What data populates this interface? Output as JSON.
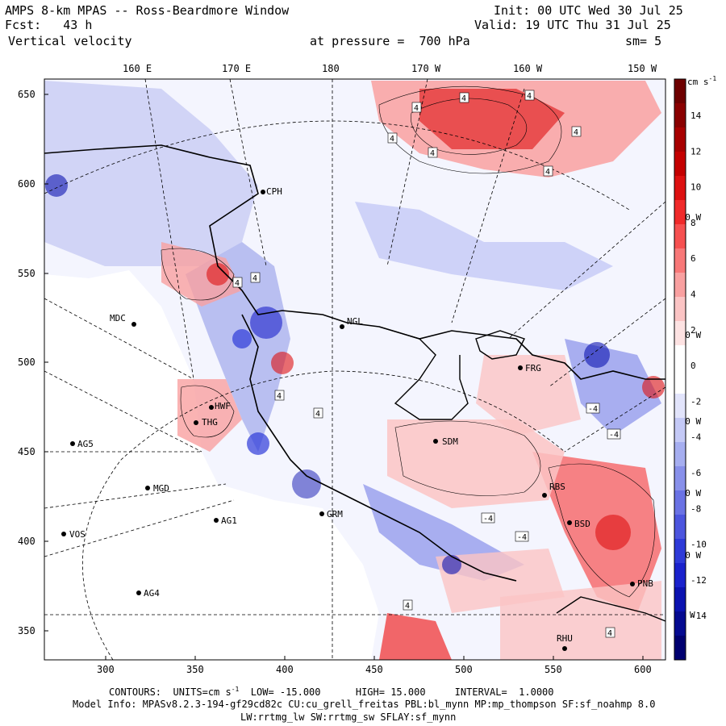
{
  "header": {
    "title": "AMPS 8-km MPAS -- Ross-Beardmore Window",
    "fcst": "Fcst:   43 h",
    "field": "Vertical velocity",
    "init": "Init: 00 UTC Wed 30 Jul 25",
    "valid": "Valid: 19 UTC Thu 31 Jul 25",
    "pressure": "at pressure =  700 hPa",
    "smoothing": "sm= 5"
  },
  "top_axis": [
    "160 E",
    "170 E",
    "180",
    "170 W",
    "160 W",
    "150 W"
  ],
  "left_axis": [
    "650",
    "600",
    "550",
    "500",
    "450",
    "400",
    "350"
  ],
  "bottom_axis": [
    "300",
    "350",
    "400",
    "450",
    "500",
    "550",
    "600"
  ],
  "right_labels": [
    "140 W",
    "130 W",
    "120 W",
    "110 W",
    "100 W",
    "W"
  ],
  "stations": [
    "CPH",
    "MDC",
    "NGL",
    "FRG",
    "HWF",
    "THG",
    "AG5",
    "SDM",
    "MGD",
    "RBS",
    "AG1",
    "GRM",
    "VOS",
    "BSD",
    "AG4",
    "RHU",
    "PNB"
  ],
  "colorbar": {
    "unit_label": "cm s",
    "unit_sup": "-1",
    "ticks": [
      "14",
      "12",
      "10",
      "8",
      "6",
      "4",
      "2",
      "0",
      "-2",
      "-4",
      "-6",
      "-8",
      "-10",
      "-12",
      "-14"
    ],
    "colors": [
      "#6e0000",
      "#8a0000",
      "#a80000",
      "#c40000",
      "#dd1010",
      "#f02a2a",
      "#f65050",
      "#f87878",
      "#f9a0a0",
      "#fbc4c4",
      "#fde2e2",
      "#ffffff",
      "#ffffff",
      "#e2e4fb",
      "#c4c9f6",
      "#a6aef0",
      "#8890ea",
      "#6a72e4",
      "#4c55de",
      "#2e3ad8",
      "#1a22cc",
      "#0b12b0",
      "#050a90",
      "#000070"
    ]
  },
  "contour_labels": [
    "4",
    "4",
    "4",
    "4",
    "4",
    "4",
    "4",
    "4",
    "4",
    "4",
    "4",
    "-4",
    "-4",
    "-4",
    "-4",
    "4",
    "4"
  ],
  "footer": {
    "contours_prefix": "CONTOURS:  UNITS=cm s",
    "units_sup": "-1",
    "contours_rest": "  LOW= -15.000      HIGH= 15.000     INTERVAL=  1.0000",
    "model_info": "Model Info: MPASv8.2.3-194-gf29cd82c CU:cu_grell_freitas PBL:bl_mynn MP:mp_thompson SF:sf_noahmp 8.0",
    "model_info2": "LW:rrtmg_lw SW:rrtmg_sw SFLAY:sf_mynn"
  }
}
